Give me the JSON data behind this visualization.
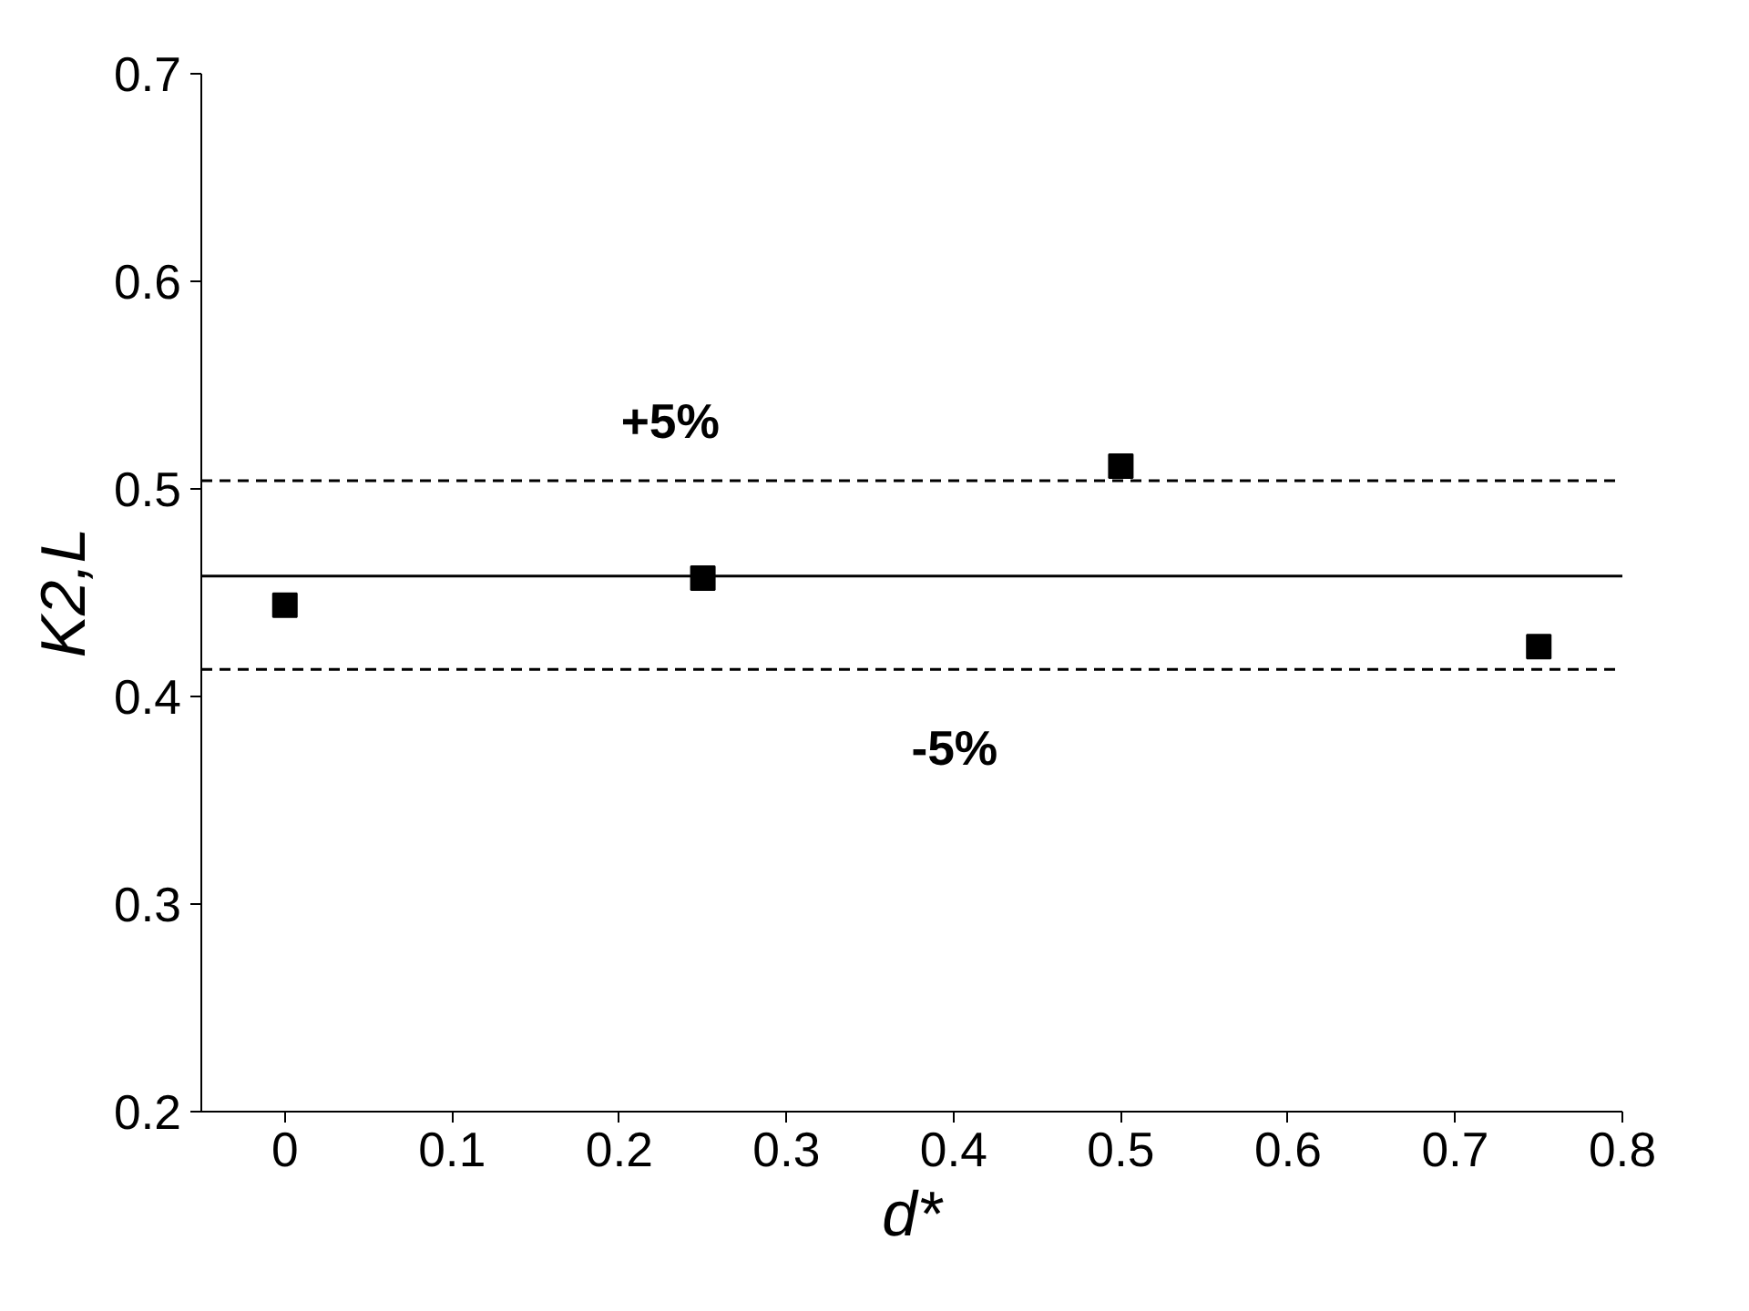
{
  "chart_data": {
    "type": "scatter",
    "xlabel": "d*",
    "ylabel": "K2,L",
    "x": [
      0,
      0.25,
      0.5,
      0.75
    ],
    "values": [
      0.444,
      0.457,
      0.511,
      0.424
    ],
    "color": "#000000",
    "marker": "square",
    "xlim": [
      -0.05,
      0.8
    ],
    "xticks": [
      0,
      0.1,
      0.2,
      0.3,
      0.4,
      0.5,
      0.6,
      0.7,
      0.8
    ],
    "ylim": [
      0.2,
      0.7
    ],
    "yticks": [
      0.2,
      0.3,
      0.4,
      0.5,
      0.6,
      0.7
    ],
    "ref_lines": [
      {
        "axis": "y",
        "value": 0.458,
        "color": "#000000",
        "line_style": "solid"
      },
      {
        "axis": "y",
        "value": 0.504,
        "color": "#000000",
        "line_style": "dashed"
      },
      {
        "axis": "y",
        "value": 0.413,
        "color": "#000000",
        "line_style": "dashed"
      }
    ],
    "annotations": [
      "+5%",
      "-5%"
    ],
    "grid": false
  }
}
